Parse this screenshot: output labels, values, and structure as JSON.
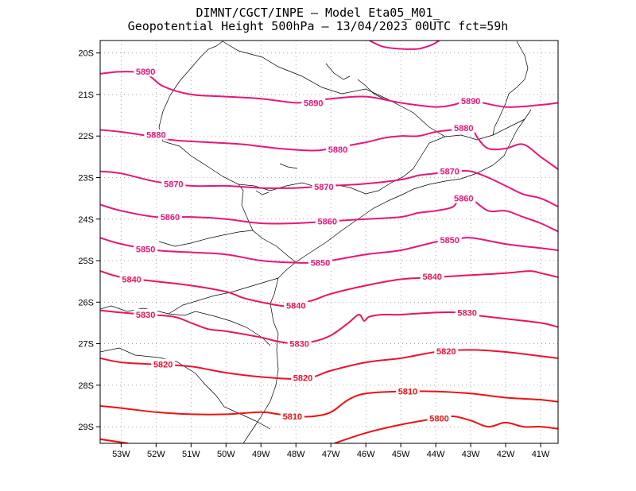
{
  "title": {
    "line1": "DIMNT/CGCT/INPE –  Model Eta05_M01_",
    "line2": "Geopotential Height 500hPa –  13/04/2023 00UTC fct=59h"
  },
  "axes": {
    "y_ticks": [
      "20S",
      "21S",
      "22S",
      "23S",
      "24S",
      "25S",
      "26S",
      "27S",
      "28S",
      "29S"
    ],
    "x_ticks": [
      "53W",
      "52W",
      "51W",
      "50W",
      "49W",
      "48W",
      "47W",
      "46W",
      "45W",
      "44W",
      "43W",
      "42W",
      "41W"
    ]
  },
  "colors": {
    "high": "#e8157a",
    "low": "#ee1010",
    "coast": "#000000",
    "grid": "#999999"
  },
  "contours": [
    {
      "value": "5890",
      "color": "#e8157a",
      "pts": [
        [
          -53.6,
          -20.5
        ],
        [
          -53.0,
          -20.45
        ],
        [
          -52.3,
          -20.5
        ],
        [
          -51.8,
          -20.8
        ],
        [
          -51.0,
          -21.0
        ],
        [
          -50.0,
          -21.05
        ],
        [
          -49.0,
          -21.1
        ],
        [
          -48.0,
          -21.2
        ],
        [
          -47.5,
          -21.15
        ],
        [
          -47.0,
          -21.1
        ],
        [
          -46.0,
          -21.05
        ],
        [
          -45.0,
          -21.2
        ],
        [
          -44.0,
          -21.3
        ],
        [
          -43.5,
          -21.25
        ],
        [
          -43.0,
          -21.15
        ],
        [
          -42.0,
          -21.3
        ],
        [
          -41.0,
          -21.25
        ],
        [
          -40.5,
          -21.2
        ]
      ],
      "labels": [
        {
          "x": -52.3,
          "y": -20.45
        },
        {
          "x": -47.5,
          "y": -21.2
        },
        {
          "x": -43.0,
          "y": -21.15
        }
      ]
    },
    {
      "value": "5880",
      "color": "#e8157a",
      "pts": [
        [
          -53.6,
          -21.85
        ],
        [
          -53.0,
          -21.9
        ],
        [
          -52.2,
          -22.0
        ],
        [
          -51.5,
          -22.1
        ],
        [
          -50.5,
          -22.15
        ],
        [
          -49.5,
          -22.2
        ],
        [
          -48.5,
          -22.3
        ],
        [
          -47.5,
          -22.35
        ],
        [
          -47.0,
          -22.3
        ],
        [
          -46.0,
          -22.15
        ],
        [
          -45.5,
          -22.05
        ],
        [
          -45.0,
          -22.0
        ],
        [
          -44.5,
          -22.0
        ],
        [
          -44.0,
          -21.9
        ],
        [
          -43.5,
          -21.85
        ],
        [
          -43.0,
          -21.8
        ],
        [
          -42.8,
          -22.05
        ],
        [
          -42.5,
          -22.3
        ],
        [
          -42.0,
          -22.3
        ],
        [
          -41.5,
          -22.2
        ],
        [
          -41.0,
          -22.5
        ],
        [
          -40.5,
          -22.8
        ]
      ],
      "labels": [
        {
          "x": -52.0,
          "y": -21.97
        },
        {
          "x": -46.8,
          "y": -22.32
        },
        {
          "x": -43.2,
          "y": -21.8
        }
      ]
    },
    {
      "value": "5870",
      "color": "#e8157a",
      "pts": [
        [
          -53.6,
          -22.85
        ],
        [
          -53.0,
          -22.9
        ],
        [
          -52.0,
          -23.1
        ],
        [
          -51.0,
          -23.2
        ],
        [
          -50.0,
          -23.2
        ],
        [
          -49.0,
          -23.25
        ],
        [
          -48.0,
          -23.25
        ],
        [
          -47.0,
          -23.2
        ],
        [
          -46.0,
          -23.15
        ],
        [
          -45.0,
          -23.05
        ],
        [
          -44.5,
          -22.95
        ],
        [
          -44.0,
          -22.9
        ],
        [
          -43.5,
          -22.85
        ],
        [
          -43.0,
          -22.85
        ],
        [
          -42.5,
          -23.0
        ],
        [
          -42.0,
          -23.2
        ],
        [
          -41.5,
          -23.4
        ],
        [
          -41.0,
          -23.5
        ],
        [
          -40.5,
          -23.7
        ]
      ],
      "labels": [
        {
          "x": -51.5,
          "y": -23.15
        },
        {
          "x": -47.2,
          "y": -23.22
        },
        {
          "x": -43.6,
          "y": -22.85
        }
      ]
    },
    {
      "value": "5860",
      "color": "#e8157a",
      "pts": [
        [
          -53.6,
          -23.65
        ],
        [
          -53.0,
          -23.8
        ],
        [
          -52.0,
          -23.95
        ],
        [
          -51.0,
          -23.95
        ],
        [
          -50.0,
          -24.0
        ],
        [
          -49.0,
          -24.1
        ],
        [
          -48.0,
          -24.1
        ],
        [
          -47.0,
          -24.05
        ],
        [
          -46.0,
          -24.0
        ],
        [
          -45.0,
          -23.95
        ],
        [
          -44.5,
          -23.85
        ],
        [
          -44.0,
          -23.8
        ],
        [
          -43.5,
          -23.7
        ],
        [
          -43.3,
          -23.45
        ],
        [
          -43.0,
          -23.5
        ],
        [
          -42.5,
          -23.8
        ],
        [
          -42.0,
          -23.8
        ],
        [
          -41.5,
          -23.95
        ],
        [
          -41.0,
          -24.1
        ],
        [
          -40.5,
          -24.3
        ]
      ],
      "labels": [
        {
          "x": -51.6,
          "y": -23.95
        },
        {
          "x": -47.1,
          "y": -24.05
        },
        {
          "x": -43.2,
          "y": -23.5
        }
      ]
    },
    {
      "value": "5850",
      "color": "#e8157a",
      "pts": [
        [
          -53.6,
          -24.45
        ],
        [
          -53.0,
          -24.6
        ],
        [
          -52.0,
          -24.75
        ],
        [
          -51.0,
          -24.8
        ],
        [
          -50.0,
          -24.85
        ],
        [
          -49.0,
          -25.0
        ],
        [
          -48.0,
          -25.05
        ],
        [
          -47.5,
          -25.05
        ],
        [
          -47.0,
          -25.0
        ],
        [
          -46.0,
          -24.85
        ],
        [
          -45.0,
          -24.75
        ],
        [
          -44.0,
          -24.55
        ],
        [
          -43.5,
          -24.5
        ],
        [
          -43.0,
          -24.45
        ],
        [
          -42.0,
          -24.6
        ],
        [
          -41.0,
          -24.7
        ],
        [
          -40.5,
          -24.75
        ]
      ],
      "labels": [
        {
          "x": -52.3,
          "y": -24.72
        },
        {
          "x": -47.3,
          "y": -25.05
        },
        {
          "x": -43.6,
          "y": -24.5
        }
      ]
    },
    {
      "value": "5840",
      "color": "#ec1459",
      "pts": [
        [
          -53.6,
          -25.25
        ],
        [
          -53.0,
          -25.4
        ],
        [
          -52.0,
          -25.5
        ],
        [
          -51.0,
          -25.6
        ],
        [
          -50.0,
          -25.75
        ],
        [
          -49.5,
          -25.9
        ],
        [
          -49.0,
          -26.0
        ],
        [
          -48.3,
          -26.1
        ],
        [
          -48.0,
          -26.05
        ],
        [
          -47.5,
          -25.95
        ],
        [
          -47.0,
          -25.8
        ],
        [
          -46.0,
          -25.6
        ],
        [
          -45.0,
          -25.45
        ],
        [
          -44.0,
          -25.4
        ],
        [
          -43.0,
          -25.35
        ],
        [
          -42.0,
          -25.3
        ],
        [
          -41.3,
          -25.25
        ],
        [
          -41.0,
          -25.3
        ],
        [
          -40.5,
          -25.4
        ]
      ],
      "labels": [
        {
          "x": -52.7,
          "y": -25.45
        },
        {
          "x": -48.0,
          "y": -26.08
        },
        {
          "x": -44.1,
          "y": -25.38
        }
      ]
    },
    {
      "value": "5830",
      "color": "#ec1459",
      "pts": [
        [
          -53.6,
          -26.2
        ],
        [
          -53.0,
          -26.25
        ],
        [
          -52.3,
          -26.3
        ],
        [
          -51.5,
          -26.35
        ],
        [
          -51.0,
          -26.5
        ],
        [
          -50.5,
          -26.65
        ],
        [
          -50.0,
          -26.7
        ],
        [
          -49.0,
          -26.85
        ],
        [
          -48.5,
          -26.95
        ],
        [
          -48.0,
          -27.0
        ],
        [
          -47.5,
          -26.95
        ],
        [
          -47.0,
          -26.8
        ],
        [
          -46.5,
          -26.5
        ],
        [
          -46.2,
          -26.3
        ],
        [
          -46.05,
          -26.45
        ],
        [
          -45.9,
          -26.35
        ],
        [
          -45.5,
          -26.3
        ],
        [
          -45.0,
          -26.3
        ],
        [
          -44.0,
          -26.25
        ],
        [
          -43.3,
          -26.25
        ],
        [
          -43.0,
          -26.3
        ],
        [
          -42.0,
          -26.4
        ],
        [
          -41.0,
          -26.5
        ],
        [
          -40.5,
          -26.6
        ]
      ],
      "labels": [
        {
          "x": -52.3,
          "y": -26.3
        },
        {
          "x": -47.9,
          "y": -27.0
        },
        {
          "x": -43.1,
          "y": -26.25
        }
      ]
    },
    {
      "value": "5820",
      "color": "#ee1032",
      "pts": [
        [
          -53.6,
          -27.35
        ],
        [
          -53.0,
          -27.45
        ],
        [
          -52.0,
          -27.5
        ],
        [
          -51.0,
          -27.55
        ],
        [
          -50.0,
          -27.7
        ],
        [
          -49.0,
          -27.8
        ],
        [
          -48.0,
          -27.85
        ],
        [
          -47.5,
          -27.8
        ],
        [
          -47.0,
          -27.65
        ],
        [
          -46.0,
          -27.45
        ],
        [
          -45.0,
          -27.35
        ],
        [
          -44.0,
          -27.2
        ],
        [
          -43.0,
          -27.15
        ],
        [
          -42.0,
          -27.2
        ],
        [
          -41.0,
          -27.3
        ],
        [
          -40.5,
          -27.35
        ]
      ],
      "labels": [
        {
          "x": -51.8,
          "y": -27.5
        },
        {
          "x": -47.8,
          "y": -27.82
        },
        {
          "x": -43.7,
          "y": -27.18
        }
      ]
    },
    {
      "value": "5810",
      "color": "#ee1010",
      "pts": [
        [
          -53.6,
          -28.5
        ],
        [
          -53.0,
          -28.55
        ],
        [
          -52.0,
          -28.65
        ],
        [
          -51.0,
          -28.7
        ],
        [
          -50.0,
          -28.7
        ],
        [
          -49.0,
          -28.65
        ],
        [
          -48.5,
          -28.7
        ],
        [
          -48.0,
          -28.75
        ],
        [
          -47.5,
          -28.75
        ],
        [
          -47.0,
          -28.65
        ],
        [
          -46.5,
          -28.35
        ],
        [
          -46.0,
          -28.2
        ],
        [
          -45.0,
          -28.15
        ],
        [
          -44.0,
          -28.15
        ],
        [
          -43.0,
          -28.2
        ],
        [
          -42.0,
          -28.3
        ],
        [
          -41.0,
          -28.35
        ],
        [
          -40.5,
          -28.4
        ]
      ],
      "labels": [
        {
          "x": -48.1,
          "y": -28.75
        },
        {
          "x": -44.8,
          "y": -28.15
        }
      ]
    },
    {
      "value": "5800",
      "color": "#ee1010",
      "pts": [
        [
          -46.9,
          -29.4
        ],
        [
          -46.0,
          -29.15
        ],
        [
          -45.0,
          -28.95
        ],
        [
          -44.0,
          -28.8
        ],
        [
          -43.5,
          -28.75
        ],
        [
          -43.0,
          -28.85
        ],
        [
          -42.5,
          -29.0
        ],
        [
          -42.0,
          -28.9
        ],
        [
          -41.5,
          -29.0
        ],
        [
          -41.0,
          -29.0
        ],
        [
          -40.5,
          -29.05
        ]
      ],
      "labels": [
        {
          "x": -43.9,
          "y": -28.8
        }
      ]
    },
    {
      "value": "",
      "color": "#ee1010",
      "pts": [
        [
          -53.6,
          -29.3
        ],
        [
          -52.8,
          -29.4
        ]
      ],
      "labels": []
    },
    {
      "value": "",
      "color": "#e8157a",
      "pts": [
        [
          -45.9,
          -19.7
        ],
        [
          -45.5,
          -19.85
        ],
        [
          -45.0,
          -19.9
        ],
        [
          -44.5,
          -19.9
        ],
        [
          -44.1,
          -19.8
        ],
        [
          -43.9,
          -19.7
        ]
      ],
      "labels": []
    }
  ]
}
